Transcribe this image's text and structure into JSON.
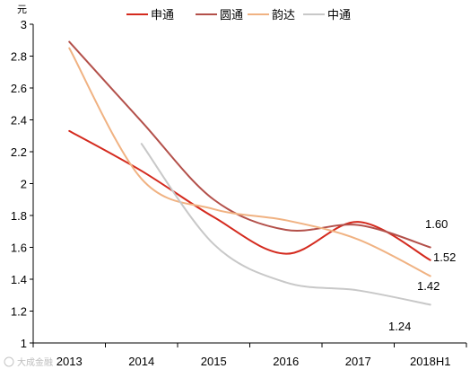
{
  "chart_data": {
    "type": "line",
    "unit_label": "元",
    "categories": [
      "2013",
      "2014",
      "2015",
      "2016",
      "2017",
      "2018H1"
    ],
    "ylim": [
      1,
      3
    ],
    "yticks": [
      "1",
      "1.2",
      "1.4",
      "1.6",
      "1.8",
      "2",
      "2.2",
      "2.4",
      "2.6",
      "2.8",
      "3"
    ],
    "grid": false,
    "legend": "top-center",
    "series": [
      {
        "name": "申通",
        "color": "#d42a1e",
        "values": [
          2.33,
          2.08,
          1.79,
          1.56,
          1.76,
          1.52
        ]
      },
      {
        "name": "圆通",
        "color": "#b3504a",
        "values": [
          2.89,
          2.39,
          1.9,
          1.71,
          1.74,
          1.6
        ]
      },
      {
        "name": "韵达",
        "color": "#f0b282",
        "values": [
          2.85,
          2.03,
          1.84,
          1.77,
          1.65,
          1.42
        ]
      },
      {
        "name": "中通",
        "color": "#c8c8c8",
        "values": [
          null,
          2.25,
          1.62,
          1.38,
          1.33,
          1.24
        ]
      }
    ],
    "data_labels": [
      "1.60",
      "1.52",
      "1.42",
      "1.24"
    ]
  },
  "watermark": "大成金融"
}
